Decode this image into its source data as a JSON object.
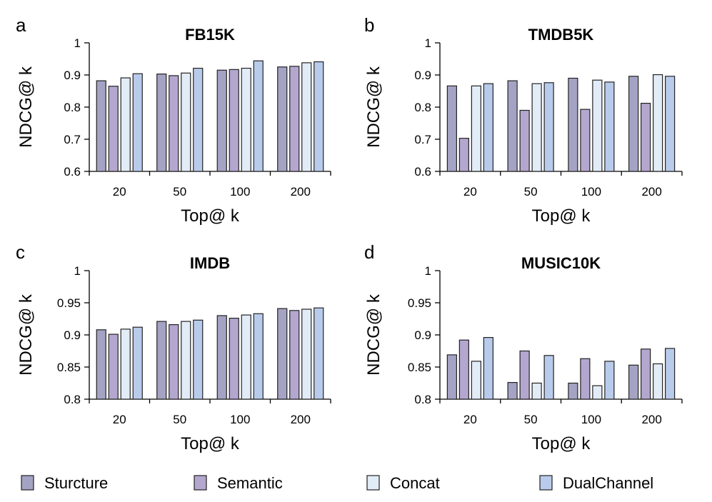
{
  "series_colors": {
    "Sturcture": "#a5a3c4",
    "Semantic": "#b4a7cf",
    "Concat": "#e2ecf7",
    "DualChannel": "#b9cbeb"
  },
  "legend": [
    "Sturcture",
    "Semantic",
    "Concat",
    "DualChannel"
  ],
  "chart_data": [
    {
      "letter": "a",
      "type": "bar",
      "title": "FB15K",
      "xlabel": "Top@ k",
      "ylabel": "NDCG@ k",
      "categories": [
        "20",
        "50",
        "100",
        "200"
      ],
      "ylim": [
        0.6,
        1
      ],
      "yticks": [
        "0.6",
        "0.7",
        "0.8",
        "0.9",
        "1"
      ],
      "series": [
        {
          "name": "Sturcture",
          "values": [
            0.882,
            0.903,
            0.915,
            0.925
          ]
        },
        {
          "name": "Semantic",
          "values": [
            0.865,
            0.898,
            0.917,
            0.927
          ]
        },
        {
          "name": "Concat",
          "values": [
            0.891,
            0.906,
            0.921,
            0.938
          ]
        },
        {
          "name": "DualChannel",
          "values": [
            0.904,
            0.921,
            0.944,
            0.941
          ]
        }
      ]
    },
    {
      "letter": "b",
      "type": "bar",
      "title": "TMDB5K",
      "xlabel": "Top@ k",
      "ylabel": "NDCG@ k",
      "categories": [
        "20",
        "50",
        "100",
        "200"
      ],
      "ylim": [
        0.6,
        1
      ],
      "yticks": [
        "0.6",
        "0.7",
        "0.8",
        "0.9",
        "1"
      ],
      "series": [
        {
          "name": "Sturcture",
          "values": [
            0.866,
            0.882,
            0.89,
            0.896
          ]
        },
        {
          "name": "Semantic",
          "values": [
            0.703,
            0.79,
            0.793,
            0.812
          ]
        },
        {
          "name": "Concat",
          "values": [
            0.866,
            0.873,
            0.884,
            0.901
          ]
        },
        {
          "name": "DualChannel",
          "values": [
            0.873,
            0.876,
            0.878,
            0.896
          ]
        }
      ]
    },
    {
      "letter": "c",
      "type": "bar",
      "title": "IMDB",
      "xlabel": "Top@ k",
      "ylabel": "NDCG@ k",
      "categories": [
        "20",
        "50",
        "100",
        "200"
      ],
      "ylim": [
        0.8,
        1
      ],
      "yticks": [
        "0.8",
        "0.85",
        "0.9",
        "0.95",
        "1"
      ],
      "series": [
        {
          "name": "Sturcture",
          "values": [
            0.908,
            0.921,
            0.93,
            0.941
          ]
        },
        {
          "name": "Semantic",
          "values": [
            0.901,
            0.916,
            0.926,
            0.938
          ]
        },
        {
          "name": "Concat",
          "values": [
            0.909,
            0.921,
            0.931,
            0.94
          ]
        },
        {
          "name": "DualChannel",
          "values": [
            0.912,
            0.923,
            0.933,
            0.942
          ]
        }
      ]
    },
    {
      "letter": "d",
      "type": "bar",
      "title": "MUSIC10K",
      "xlabel": "Top@ k",
      "ylabel": "NDCG@ k",
      "categories": [
        "20",
        "50",
        "100",
        "200"
      ],
      "ylim": [
        0.8,
        1
      ],
      "yticks": [
        "0.8",
        "0.85",
        "0.9",
        "0.95",
        "1"
      ],
      "series": [
        {
          "name": "Sturcture",
          "values": [
            0.869,
            0.826,
            0.825,
            0.853
          ]
        },
        {
          "name": "Semantic",
          "values": [
            0.892,
            0.875,
            0.863,
            0.878
          ]
        },
        {
          "name": "Concat",
          "values": [
            0.859,
            0.825,
            0.821,
            0.855
          ]
        },
        {
          "name": "DualChannel",
          "values": [
            0.896,
            0.868,
            0.859,
            0.879
          ]
        }
      ]
    }
  ]
}
